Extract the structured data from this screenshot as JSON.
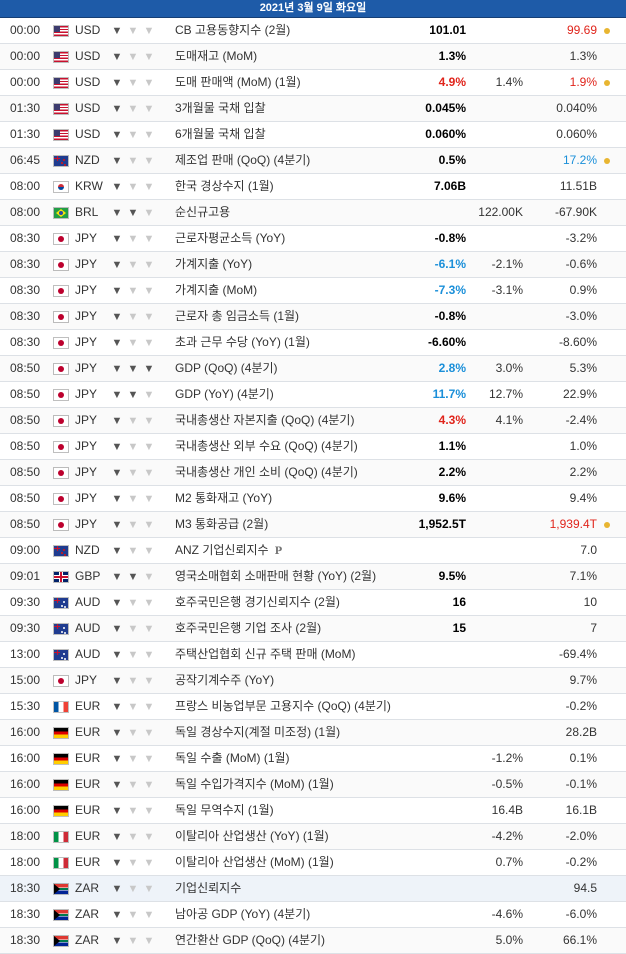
{
  "calendar": {
    "date_header": "2021년 3월 9일 화요일",
    "rows": [
      {
        "time": "00:00",
        "flag": "us",
        "cur": "USD",
        "imp": 1,
        "event": "CB 고용동향지수 (2월)",
        "actual": "101.01",
        "actual_color": "black",
        "forecast": "",
        "previous": "99.69",
        "previous_color": "red",
        "dot": true
      },
      {
        "time": "00:00",
        "flag": "us",
        "cur": "USD",
        "imp": 1,
        "event": "도매재고 (MoM)",
        "actual": "1.3%",
        "actual_color": "black",
        "forecast": "",
        "previous": "1.3%",
        "previous_color": "",
        "dot": false
      },
      {
        "time": "00:00",
        "flag": "us",
        "cur": "USD",
        "imp": 1,
        "event": "도매 판매액 (MoM) (1월)",
        "actual": "4.9%",
        "actual_color": "red",
        "forecast": "1.4%",
        "previous": "1.9%",
        "previous_color": "red",
        "dot": true
      },
      {
        "time": "01:30",
        "flag": "us",
        "cur": "USD",
        "imp": 1,
        "event": "3개월물 국채 입찰",
        "actual": "0.045%",
        "actual_color": "black",
        "forecast": "",
        "previous": "0.040%",
        "previous_color": "",
        "dot": false
      },
      {
        "time": "01:30",
        "flag": "us",
        "cur": "USD",
        "imp": 1,
        "event": "6개월물 국채 입찰",
        "actual": "0.060%",
        "actual_color": "black",
        "forecast": "",
        "previous": "0.060%",
        "previous_color": "",
        "dot": false
      },
      {
        "time": "06:45",
        "flag": "nz",
        "cur": "NZD",
        "imp": 1,
        "event": "제조업 판매 (QoQ) (4분기)",
        "actual": "0.5%",
        "actual_color": "black",
        "forecast": "",
        "previous": "17.2%",
        "previous_color": "blue",
        "dot": true
      },
      {
        "time": "08:00",
        "flag": "kr",
        "cur": "KRW",
        "imp": 1,
        "event": "한국 경상수지 (1월)",
        "actual": "7.06B",
        "actual_color": "black",
        "forecast": "",
        "previous": "11.51B",
        "previous_color": "",
        "dot": false
      },
      {
        "time": "08:00",
        "flag": "br",
        "cur": "BRL",
        "imp": 2,
        "event": "순신규고용",
        "actual": "",
        "actual_color": "",
        "forecast": "122.00K",
        "previous": "-67.90K",
        "previous_color": "",
        "dot": false
      },
      {
        "time": "08:30",
        "flag": "jp",
        "cur": "JPY",
        "imp": 1,
        "event": "근로자평균소득 (YoY)",
        "actual": "-0.8%",
        "actual_color": "black",
        "forecast": "",
        "previous": "-3.2%",
        "previous_color": "",
        "dot": false
      },
      {
        "time": "08:30",
        "flag": "jp",
        "cur": "JPY",
        "imp": 1,
        "event": "가계지출 (YoY)",
        "actual": "-6.1%",
        "actual_color": "blue",
        "forecast": "-2.1%",
        "previous": "-0.6%",
        "previous_color": "",
        "dot": false
      },
      {
        "time": "08:30",
        "flag": "jp",
        "cur": "JPY",
        "imp": 1,
        "event": "가계지출 (MoM)",
        "actual": "-7.3%",
        "actual_color": "blue",
        "forecast": "-3.1%",
        "previous": "0.9%",
        "previous_color": "",
        "dot": false
      },
      {
        "time": "08:30",
        "flag": "jp",
        "cur": "JPY",
        "imp": 1,
        "event": "근로자 총 임금소득 (1월)",
        "actual": "-0.8%",
        "actual_color": "black",
        "forecast": "",
        "previous": "-3.0%",
        "previous_color": "",
        "dot": false
      },
      {
        "time": "08:30",
        "flag": "jp",
        "cur": "JPY",
        "imp": 1,
        "event": "초과 근무 수당 (YoY) (1월)",
        "actual": "-6.60%",
        "actual_color": "black",
        "forecast": "",
        "previous": "-8.60%",
        "previous_color": "",
        "dot": false
      },
      {
        "time": "08:50",
        "flag": "jp",
        "cur": "JPY",
        "imp": 3,
        "event": "GDP (QoQ) (4분기)",
        "actual": "2.8%",
        "actual_color": "blue",
        "forecast": "3.0%",
        "previous": "5.3%",
        "previous_color": "",
        "dot": false
      },
      {
        "time": "08:50",
        "flag": "jp",
        "cur": "JPY",
        "imp": 2,
        "event": "GDP (YoY) (4분기)",
        "actual": "11.7%",
        "actual_color": "blue",
        "forecast": "12.7%",
        "previous": "22.9%",
        "previous_color": "",
        "dot": false
      },
      {
        "time": "08:50",
        "flag": "jp",
        "cur": "JPY",
        "imp": 1,
        "event": "국내총생산 자본지출 (QoQ) (4분기)",
        "actual": "4.3%",
        "actual_color": "red",
        "forecast": "4.1%",
        "previous": "-2.4%",
        "previous_color": "",
        "dot": false
      },
      {
        "time": "08:50",
        "flag": "jp",
        "cur": "JPY",
        "imp": 1,
        "event": "국내총생산 외부 수요 (QoQ) (4분기)",
        "actual": "1.1%",
        "actual_color": "black",
        "forecast": "",
        "previous": "1.0%",
        "previous_color": "",
        "dot": false
      },
      {
        "time": "08:50",
        "flag": "jp",
        "cur": "JPY",
        "imp": 1,
        "event": "국내총생산 개인 소비 (QoQ) (4분기)",
        "actual": "2.2%",
        "actual_color": "black",
        "forecast": "",
        "previous": "2.2%",
        "previous_color": "",
        "dot": false
      },
      {
        "time": "08:50",
        "flag": "jp",
        "cur": "JPY",
        "imp": 1,
        "event": "M2 통화재고 (YoY)",
        "actual": "9.6%",
        "actual_color": "black",
        "forecast": "",
        "previous": "9.4%",
        "previous_color": "",
        "dot": false
      },
      {
        "time": "08:50",
        "flag": "jp",
        "cur": "JPY",
        "imp": 1,
        "event": "M3 통화공급 (2월)",
        "actual": "1,952.5T",
        "actual_color": "black",
        "forecast": "",
        "previous": "1,939.4T",
        "previous_color": "red",
        "dot": true
      },
      {
        "time": "09:00",
        "flag": "nz",
        "cur": "NZD",
        "imp": 1,
        "event": "ANZ 기업신뢰지수",
        "prelim": "P",
        "actual": "",
        "actual_color": "",
        "forecast": "",
        "previous": "7.0",
        "previous_color": "",
        "dot": false
      },
      {
        "time": "09:01",
        "flag": "gb",
        "cur": "GBP",
        "imp": 2,
        "event": "영국소매협회 소매판매 현황 (YoY) (2월)",
        "actual": "9.5%",
        "actual_color": "black",
        "forecast": "",
        "previous": "7.1%",
        "previous_color": "",
        "dot": false
      },
      {
        "time": "09:30",
        "flag": "au",
        "cur": "AUD",
        "imp": 1,
        "event": "호주국민은행 경기신뢰지수 (2월)",
        "actual": "16",
        "actual_color": "black",
        "forecast": "",
        "previous": "10",
        "previous_color": "",
        "dot": false
      },
      {
        "time": "09:30",
        "flag": "au",
        "cur": "AUD",
        "imp": 1,
        "event": "호주국민은행 기업 조사 (2월)",
        "actual": "15",
        "actual_color": "black",
        "forecast": "",
        "previous": "7",
        "previous_color": "",
        "dot": false
      },
      {
        "time": "13:00",
        "flag": "au",
        "cur": "AUD",
        "imp": 1,
        "event": "주택산업협회 신규 주택 판매 (MoM)",
        "actual": "",
        "actual_color": "",
        "forecast": "",
        "previous": "-69.4%",
        "previous_color": "",
        "dot": false
      },
      {
        "time": "15:00",
        "flag": "jp",
        "cur": "JPY",
        "imp": 1,
        "event": "공작기계수주 (YoY)",
        "actual": "",
        "actual_color": "",
        "forecast": "",
        "previous": "9.7%",
        "previous_color": "",
        "dot": false
      },
      {
        "time": "15:30",
        "flag": "fr",
        "cur": "EUR",
        "imp": 1,
        "event": "프랑스 비농업부문 고용지수 (QoQ) (4분기)",
        "actual": "",
        "actual_color": "",
        "forecast": "",
        "previous": "-0.2%",
        "previous_color": "",
        "dot": false
      },
      {
        "time": "16:00",
        "flag": "de",
        "cur": "EUR",
        "imp": 1,
        "event": "독일 경상수지(계절 미조정) (1월)",
        "actual": "",
        "actual_color": "",
        "forecast": "",
        "previous": "28.2B",
        "previous_color": "",
        "dot": false
      },
      {
        "time": "16:00",
        "flag": "de",
        "cur": "EUR",
        "imp": 1,
        "event": "독일 수출 (MoM) (1월)",
        "actual": "",
        "actual_color": "",
        "forecast": "-1.2%",
        "previous": "0.1%",
        "previous_color": "",
        "dot": false
      },
      {
        "time": "16:00",
        "flag": "de",
        "cur": "EUR",
        "imp": 1,
        "event": "독일 수입가격지수 (MoM) (1월)",
        "actual": "",
        "actual_color": "",
        "forecast": "-0.5%",
        "previous": "-0.1%",
        "previous_color": "",
        "dot": false
      },
      {
        "time": "16:00",
        "flag": "de",
        "cur": "EUR",
        "imp": 1,
        "event": "독일 무역수지 (1월)",
        "actual": "",
        "actual_color": "",
        "forecast": "16.4B",
        "previous": "16.1B",
        "previous_color": "",
        "dot": false
      },
      {
        "time": "18:00",
        "flag": "it",
        "cur": "EUR",
        "imp": 1,
        "event": "이탈리아 산업생산 (YoY) (1월)",
        "actual": "",
        "actual_color": "",
        "forecast": "-4.2%",
        "previous": "-2.0%",
        "previous_color": "",
        "dot": false
      },
      {
        "time": "18:00",
        "flag": "it",
        "cur": "EUR",
        "imp": 1,
        "event": "이탈리아 산업생산 (MoM) (1월)",
        "actual": "",
        "actual_color": "",
        "forecast": "0.7%",
        "previous": "-0.2%",
        "previous_color": "",
        "dot": false
      },
      {
        "time": "18:30",
        "flag": "za",
        "cur": "ZAR",
        "imp": 1,
        "event": "기업신뢰지수",
        "actual": "",
        "actual_color": "",
        "forecast": "",
        "previous": "94.5",
        "previous_color": "",
        "dot": false,
        "highlight": true
      },
      {
        "time": "18:30",
        "flag": "za",
        "cur": "ZAR",
        "imp": 1,
        "event": "남아공 GDP (YoY) (4분기)",
        "actual": "",
        "actual_color": "",
        "forecast": "-4.6%",
        "previous": "-6.0%",
        "previous_color": "",
        "dot": false
      },
      {
        "time": "18:30",
        "flag": "za",
        "cur": "ZAR",
        "imp": 1,
        "event": "연간환산 GDP (QoQ) (4분기)",
        "actual": "",
        "actual_color": "",
        "forecast": "5.0%",
        "previous": "66.1%",
        "previous_color": "",
        "dot": false
      }
    ]
  },
  "icons": {
    "importance": "bull-icon",
    "flag": "flag-icon",
    "revised": "revision-dot-icon"
  },
  "colors": {
    "header_bg": "#1e5ba8",
    "red": "#e0241b",
    "blue": "#1a8fd9",
    "dot": "#e8b531"
  }
}
